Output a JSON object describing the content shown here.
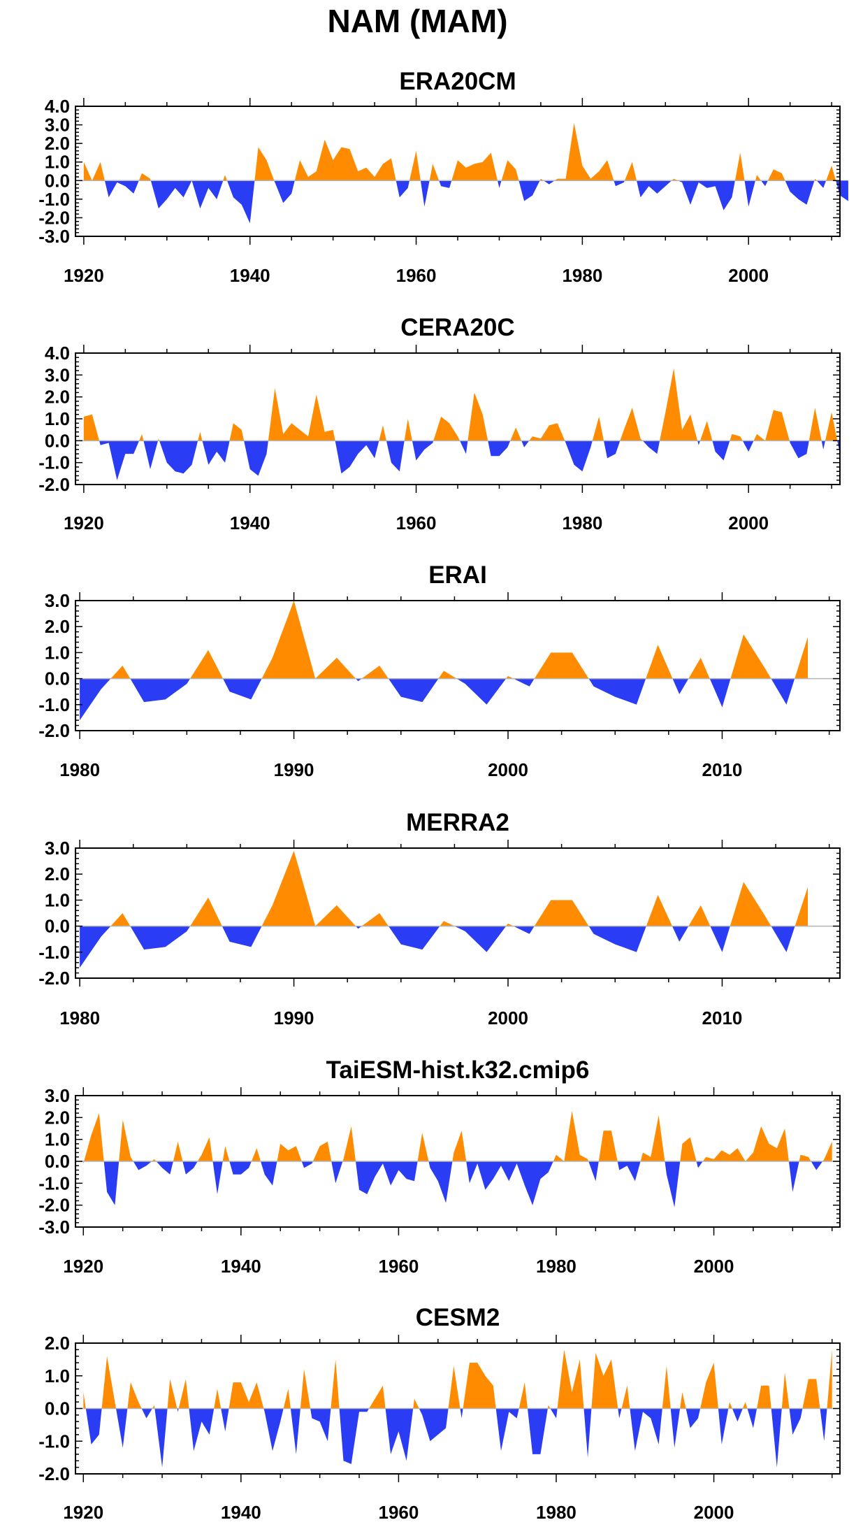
{
  "figure": {
    "title": "NAM (MAM)"
  },
  "colors": {
    "positive": "#ff8c00",
    "negative": "#2b3cf5",
    "axis": "#000000",
    "zero_line": "#b4b4b4"
  },
  "chart_data": [
    {
      "type": "area",
      "title": "ERA20CM",
      "x_range": [
        1919,
        2011
      ],
      "ylim": [
        -3.0,
        4.0
      ],
      "yticks": [
        "4.0",
        "3.0",
        "2.0",
        "1.0",
        "0.0",
        "-1.0",
        "-2.0",
        "-3.0"
      ],
      "xticks": [
        "1920",
        "1940",
        "1960",
        "1980",
        "2000"
      ],
      "x_start": 1920,
      "values": [
        1.0,
        0.0,
        1.0,
        -0.9,
        -0.1,
        -0.3,
        -0.7,
        0.4,
        0.1,
        -1.5,
        -1.0,
        -0.4,
        -0.9,
        0.0,
        -1.5,
        -0.4,
        -1.0,
        0.3,
        -0.9,
        -1.3,
        -2.3,
        1.8,
        1.1,
        -0.1,
        -1.2,
        -0.7,
        1.1,
        0.2,
        0.5,
        2.2,
        1.1,
        1.8,
        1.7,
        0.5,
        0.7,
        0.2,
        0.9,
        1.2,
        -0.9,
        -0.4,
        1.6,
        -1.4,
        0.9,
        -0.3,
        -0.4,
        1.1,
        0.7,
        0.9,
        1.0,
        1.5,
        -0.4,
        1.1,
        0.6,
        -1.1,
        -0.8,
        0.1,
        -0.2,
        0.1,
        0.1,
        3.1,
        0.8,
        0.1,
        0.5,
        1.1,
        -0.3,
        -0.1,
        1.0,
        -0.9,
        -0.3,
        -0.7,
        -0.3,
        0.1,
        -0.1,
        -1.3,
        -0.1,
        -0.4,
        -0.3,
        -1.6,
        -0.9,
        1.5,
        -1.4,
        0.3,
        -0.3,
        0.6,
        0.4,
        -0.6,
        -1.0,
        -1.3,
        0.1,
        -0.4,
        0.8,
        -0.8,
        -1.1
      ]
    },
    {
      "type": "area",
      "title": "CERA20C",
      "x_range": [
        1919,
        2011
      ],
      "ylim": [
        -2.0,
        4.0
      ],
      "yticks": [
        "4.0",
        "3.0",
        "2.0",
        "1.0",
        "0.0",
        "-1.0",
        "-2.0"
      ],
      "xticks": [
        "1920",
        "1940",
        "1960",
        "1980",
        "2000"
      ],
      "x_start": 1920,
      "values": [
        1.1,
        1.2,
        -0.2,
        -0.1,
        -1.8,
        -0.6,
        -0.6,
        0.3,
        -1.3,
        0.1,
        -1.0,
        -1.4,
        -1.5,
        -1.1,
        0.4,
        -1.1,
        -0.5,
        -1.0,
        0.8,
        0.5,
        -1.3,
        -1.6,
        -0.6,
        2.4,
        0.3,
        0.8,
        0.5,
        0.2,
        2.1,
        0.4,
        0.5,
        -1.5,
        -1.2,
        -0.6,
        -0.2,
        -0.8,
        0.7,
        -1.0,
        -1.4,
        1.0,
        -0.9,
        -0.4,
        -0.1,
        1.1,
        0.8,
        0.2,
        -0.6,
        2.2,
        1.2,
        -0.7,
        -0.7,
        -0.3,
        0.6,
        -0.3,
        0.2,
        0.1,
        0.7,
        0.8,
        -0.1,
        -1.1,
        -1.4,
        -0.3,
        1.1,
        -0.8,
        -0.6,
        0.5,
        1.5,
        0.1,
        -0.3,
        -0.6,
        1.3,
        3.3,
        0.5,
        1.2,
        -0.2,
        0.9,
        -0.5,
        -0.9,
        0.3,
        0.2,
        -0.5,
        0.3,
        0.0,
        1.4,
        1.3,
        -0.1,
        -0.8,
        -0.6,
        1.5,
        -0.4,
        1.3,
        -0.6
      ]
    },
    {
      "type": "area",
      "title": "ERAI",
      "x_range": [
        1979.8,
        2015.5
      ],
      "ylim": [
        -2.0,
        3.0
      ],
      "yticks": [
        "3.0",
        "2.0",
        "1.0",
        "0.0",
        "-1.0",
        "-2.0"
      ],
      "xticks": [
        "1980",
        "1990",
        "2000",
        "2010"
      ],
      "x_start": 1980,
      "values": [
        -1.6,
        -0.4,
        0.5,
        -0.9,
        -0.8,
        -0.2,
        1.1,
        -0.5,
        -0.8,
        0.8,
        3.0,
        0.0,
        0.8,
        -0.1,
        0.5,
        -0.7,
        -0.9,
        0.3,
        -0.2,
        -1.0,
        0.1,
        -0.3,
        1.0,
        1.0,
        -0.3,
        -0.7,
        -1.0,
        1.3,
        -0.6,
        0.8,
        -1.1,
        1.7,
        0.4,
        -1.0,
        1.6
      ]
    },
    {
      "type": "area",
      "title": "MERRA2",
      "x_range": [
        1979.8,
        2015.5
      ],
      "ylim": [
        -2.0,
        3.0
      ],
      "yticks": [
        "3.0",
        "2.0",
        "1.0",
        "0.0",
        "-1.0",
        "-2.0"
      ],
      "xticks": [
        "1980",
        "1990",
        "2000",
        "2010"
      ],
      "x_start": 1980,
      "values": [
        -1.6,
        -0.4,
        0.5,
        -0.9,
        -0.8,
        -0.2,
        1.1,
        -0.6,
        -0.8,
        0.8,
        2.9,
        0.0,
        0.8,
        -0.1,
        0.5,
        -0.7,
        -0.9,
        0.2,
        -0.2,
        -1.0,
        0.1,
        -0.3,
        1.0,
        1.0,
        -0.3,
        -0.7,
        -1.0,
        1.2,
        -0.6,
        0.8,
        -1.0,
        1.7,
        0.4,
        -1.0,
        1.5
      ]
    },
    {
      "type": "area",
      "title": "TaiESM-hist.k32.cmip6",
      "x_range": [
        1919,
        2016
      ],
      "ylim": [
        -3.0,
        3.0
      ],
      "yticks": [
        "3.0",
        "2.0",
        "1.0",
        "0.0",
        "-1.0",
        "-2.0",
        "-3.0"
      ],
      "xticks": [
        "1920",
        "1940",
        "1960",
        "1980",
        "2000"
      ],
      "x_start": 1920,
      "values": [
        -0.1,
        1.2,
        2.2,
        -1.4,
        -2.0,
        1.9,
        0.2,
        -0.4,
        -0.2,
        0.1,
        -0.3,
        -0.6,
        0.9,
        -0.6,
        -0.3,
        0.3,
        1.1,
        -1.5,
        0.7,
        -0.6,
        -0.6,
        -0.3,
        0.6,
        -0.6,
        -1.1,
        0.8,
        0.5,
        0.7,
        -0.3,
        -0.1,
        0.7,
        0.9,
        -1.0,
        0.1,
        1.6,
        -1.3,
        -1.5,
        -0.7,
        -0.1,
        -1.1,
        -0.4,
        -0.8,
        -0.9,
        1.3,
        -0.3,
        -0.9,
        -1.9,
        0.4,
        1.4,
        -1.0,
        -0.1,
        -1.3,
        -0.8,
        -0.2,
        -0.9,
        -0.1,
        -1.1,
        -2.0,
        -0.8,
        -0.5,
        0.3,
        0.0,
        2.3,
        0.3,
        0.1,
        -0.9,
        1.4,
        1.4,
        -0.4,
        -0.2,
        -0.9,
        0.4,
        0.2,
        2.1,
        -0.6,
        -2.1,
        0.8,
        1.1,
        -0.3,
        0.2,
        0.1,
        0.5,
        0.3,
        0.6,
        0.0,
        0.4,
        1.6,
        0.8,
        0.6,
        1.5,
        -1.4,
        0.3,
        0.2,
        -0.4,
        0.1,
        0.9
      ]
    },
    {
      "type": "area",
      "title": "CESM2",
      "x_range": [
        1919,
        2016
      ],
      "ylim": [
        -2.0,
        2.0
      ],
      "yticks": [
        "2.0",
        "1.0",
        "0.0",
        "-1.0",
        "-2.0"
      ],
      "xticks": [
        "1920",
        "1940",
        "1960",
        "1980",
        "2000"
      ],
      "x_start": 1920,
      "values": [
        0.5,
        -1.1,
        -0.8,
        1.6,
        0.2,
        -1.2,
        0.8,
        0.2,
        -0.3,
        0.1,
        -1.8,
        0.9,
        -0.1,
        0.9,
        -1.3,
        -0.4,
        -0.8,
        0.6,
        -0.7,
        0.8,
        0.8,
        0.2,
        0.8,
        -0.1,
        -1.3,
        -0.4,
        0.6,
        -1.4,
        1.2,
        -0.3,
        -0.4,
        -1.0,
        1.5,
        -1.6,
        -1.7,
        -0.1,
        -0.1,
        0.3,
        0.7,
        -1.4,
        -0.7,
        -1.6,
        0.3,
        -0.2,
        -1.0,
        -0.8,
        -0.6,
        1.3,
        -0.3,
        1.4,
        1.4,
        1.0,
        0.7,
        -1.3,
        -0.1,
        -0.3,
        0.8,
        -1.4,
        -1.4,
        0.1,
        -0.3,
        1.8,
        0.5,
        1.5,
        -1.5,
        1.7,
        1.0,
        1.5,
        -0.3,
        0.7,
        -1.3,
        -0.1,
        -0.3,
        -1.1,
        1.3,
        -1.2,
        0.5,
        -0.6,
        -0.3,
        0.8,
        1.4,
        -1.1,
        0.2,
        -0.4,
        0.2,
        -0.6,
        0.7,
        0.7,
        -1.8,
        1.1,
        -0.8,
        -0.3,
        0.9,
        0.9,
        -1.0,
        1.8
      ]
    }
  ]
}
